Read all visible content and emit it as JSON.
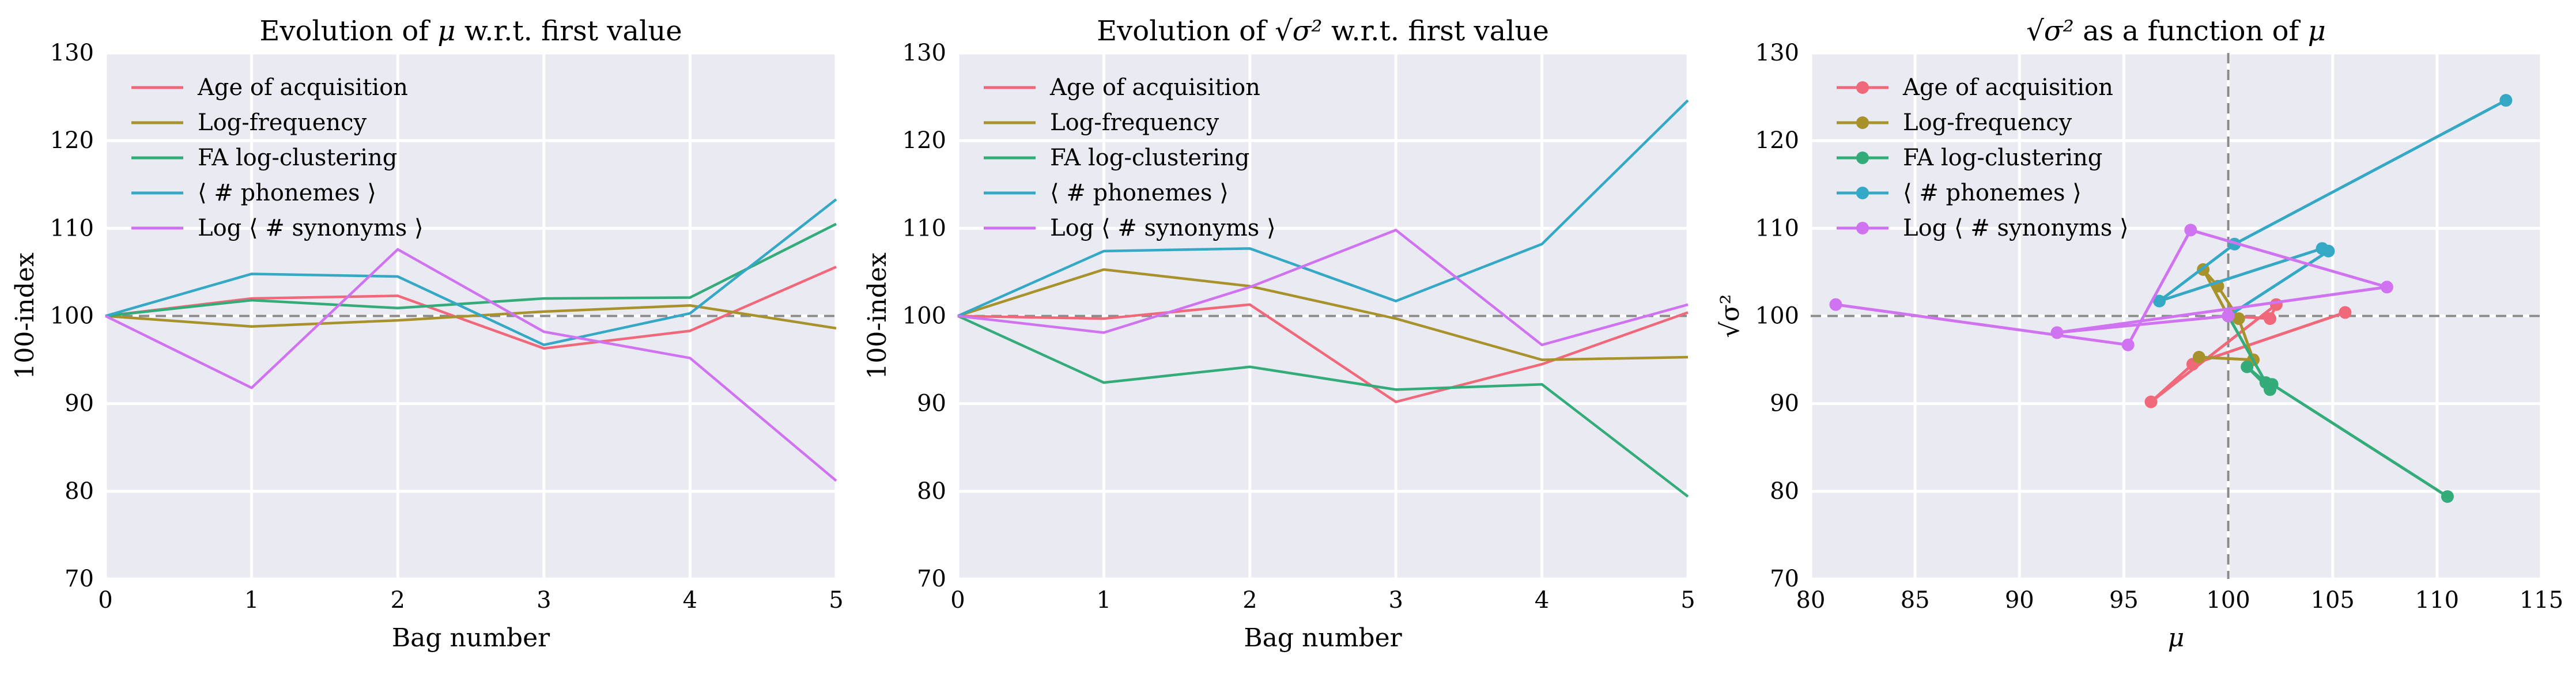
{
  "figure": {
    "dashed_reference": 100
  },
  "chart_data": [
    {
      "type": "line",
      "title_pre": "Evolution of ",
      "title_sym": "μ",
      "title_post": " w.r.t. first value",
      "xlabel": "Bag number",
      "ylabel": "100-index",
      "xlim": [
        0,
        5
      ],
      "ylim": [
        70,
        130
      ],
      "xticks": [
        "0",
        "1",
        "2",
        "3",
        "4",
        "5"
      ],
      "yticks": [
        "70",
        "80",
        "90",
        "100",
        "110",
        "120",
        "130"
      ],
      "grid": true,
      "legend_position": "top-left",
      "x": [
        0,
        1,
        2,
        3,
        4,
        5
      ],
      "series": [
        {
          "name": "Age of acquisition",
          "color": "#f0697a",
          "values": [
            100,
            102.0,
            102.3,
            96.3,
            98.3,
            105.6
          ]
        },
        {
          "name": "Log-frequency",
          "color": "#a8922c",
          "values": [
            100,
            98.8,
            99.5,
            100.5,
            101.2,
            98.6
          ]
        },
        {
          "name": "FA log-clustering",
          "color": "#33ac7a",
          "values": [
            100,
            101.8,
            100.9,
            102.0,
            102.1,
            110.5
          ]
        },
        {
          "name": "⟨ # phonemes ⟩",
          "color": "#34a8c4",
          "values": [
            100,
            104.8,
            104.5,
            96.7,
            100.3,
            113.3
          ]
        },
        {
          "name": "Log ⟨ # synonyms ⟩",
          "color": "#cf73f0",
          "values": [
            100,
            91.8,
            107.6,
            98.2,
            95.2,
            81.2
          ]
        }
      ]
    },
    {
      "type": "line",
      "title_pre": "Evolution of ",
      "title_sym": "√σ²",
      "title_post": " w.r.t. first value",
      "xlabel": "Bag number",
      "ylabel": "100-index",
      "xlim": [
        0,
        5
      ],
      "ylim": [
        70,
        130
      ],
      "xticks": [
        "0",
        "1",
        "2",
        "3",
        "4",
        "5"
      ],
      "yticks": [
        "70",
        "80",
        "90",
        "100",
        "110",
        "120",
        "130"
      ],
      "grid": true,
      "legend_position": "top-left",
      "x": [
        0,
        1,
        2,
        3,
        4,
        5
      ],
      "series": [
        {
          "name": "Age of acquisition",
          "color": "#f0697a",
          "values": [
            100,
            99.7,
            101.3,
            90.2,
            94.5,
            100.4
          ]
        },
        {
          "name": "Log-frequency",
          "color": "#a8922c",
          "values": [
            100,
            105.3,
            103.4,
            99.7,
            95.0,
            95.3
          ]
        },
        {
          "name": "FA log-clustering",
          "color": "#33ac7a",
          "values": [
            100,
            92.4,
            94.2,
            91.6,
            92.2,
            79.4
          ]
        },
        {
          "name": "⟨ # phonemes ⟩",
          "color": "#34a8c4",
          "values": [
            100,
            107.4,
            107.7,
            101.7,
            108.2,
            124.6
          ]
        },
        {
          "name": "Log ⟨ # synonyms ⟩",
          "color": "#cf73f0",
          "values": [
            100,
            98.1,
            103.3,
            109.8,
            96.7,
            101.3
          ]
        }
      ]
    },
    {
      "type": "scatter",
      "title_pre": "",
      "title_sym": "√σ²",
      "title_post": " as a function of ",
      "title_sym2": "μ",
      "xlabel": "μ",
      "ylabel": "√σ²",
      "xlim": [
        80,
        115
      ],
      "ylim": [
        70,
        130
      ],
      "xticks": [
        "80",
        "85",
        "90",
        "95",
        "100",
        "105",
        "110",
        "115"
      ],
      "yticks": [
        "70",
        "80",
        "90",
        "100",
        "110",
        "120",
        "130"
      ],
      "grid": true,
      "legend_position": "top-left",
      "reference_lines": {
        "x": 100,
        "y": 100
      },
      "series": [
        {
          "name": "Age of acquisition",
          "color": "#f0697a",
          "points": [
            [
              100,
              100
            ],
            [
              102.0,
              99.7
            ],
            [
              102.3,
              101.3
            ],
            [
              96.3,
              90.2
            ],
            [
              98.3,
              94.5
            ],
            [
              105.6,
              100.4
            ]
          ]
        },
        {
          "name": "Log-frequency",
          "color": "#a8922c",
          "points": [
            [
              100,
              100
            ],
            [
              98.8,
              105.3
            ],
            [
              99.5,
              103.4
            ],
            [
              100.5,
              99.7
            ],
            [
              101.2,
              95.0
            ],
            [
              98.6,
              95.3
            ]
          ]
        },
        {
          "name": "FA log-clustering",
          "color": "#33ac7a",
          "points": [
            [
              100,
              100
            ],
            [
              101.8,
              92.4
            ],
            [
              100.9,
              94.2
            ],
            [
              102.0,
              91.6
            ],
            [
              102.1,
              92.2
            ],
            [
              110.5,
              79.4
            ]
          ]
        },
        {
          "name": "⟨ # phonemes ⟩",
          "color": "#34a8c4",
          "points": [
            [
              100,
              100
            ],
            [
              104.8,
              107.4
            ],
            [
              104.5,
              107.7
            ],
            [
              96.7,
              101.7
            ],
            [
              100.3,
              108.2
            ],
            [
              113.3,
              124.6
            ]
          ]
        },
        {
          "name": "Log ⟨ # synonyms ⟩",
          "color": "#cf73f0",
          "points": [
            [
              100,
              100
            ],
            [
              91.8,
              98.1
            ],
            [
              107.6,
              103.3
            ],
            [
              98.2,
              109.8
            ],
            [
              95.2,
              96.7
            ],
            [
              81.2,
              101.3
            ]
          ]
        }
      ]
    }
  ]
}
